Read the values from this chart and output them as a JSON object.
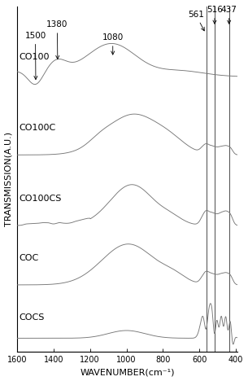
{
  "xlabel": "WAVENUMBER(cm⁻¹)",
  "ylabel": "TRANSMISSION(A.U.)",
  "xlim": [
    1600,
    390
  ],
  "background_color": "#ffffff",
  "spectra_labels": [
    "CO100",
    "CO100C",
    "CO100CS",
    "COC",
    "COCS"
  ],
  "offsets": [
    7.2,
    5.3,
    3.4,
    1.8,
    0.2
  ],
  "vlines": [
    561,
    516,
    437
  ],
  "line_color": "#777777",
  "vline_color": "#555555",
  "fontsize_tick": 7,
  "fontsize_label": 8,
  "fontsize_annot": 7.5
}
